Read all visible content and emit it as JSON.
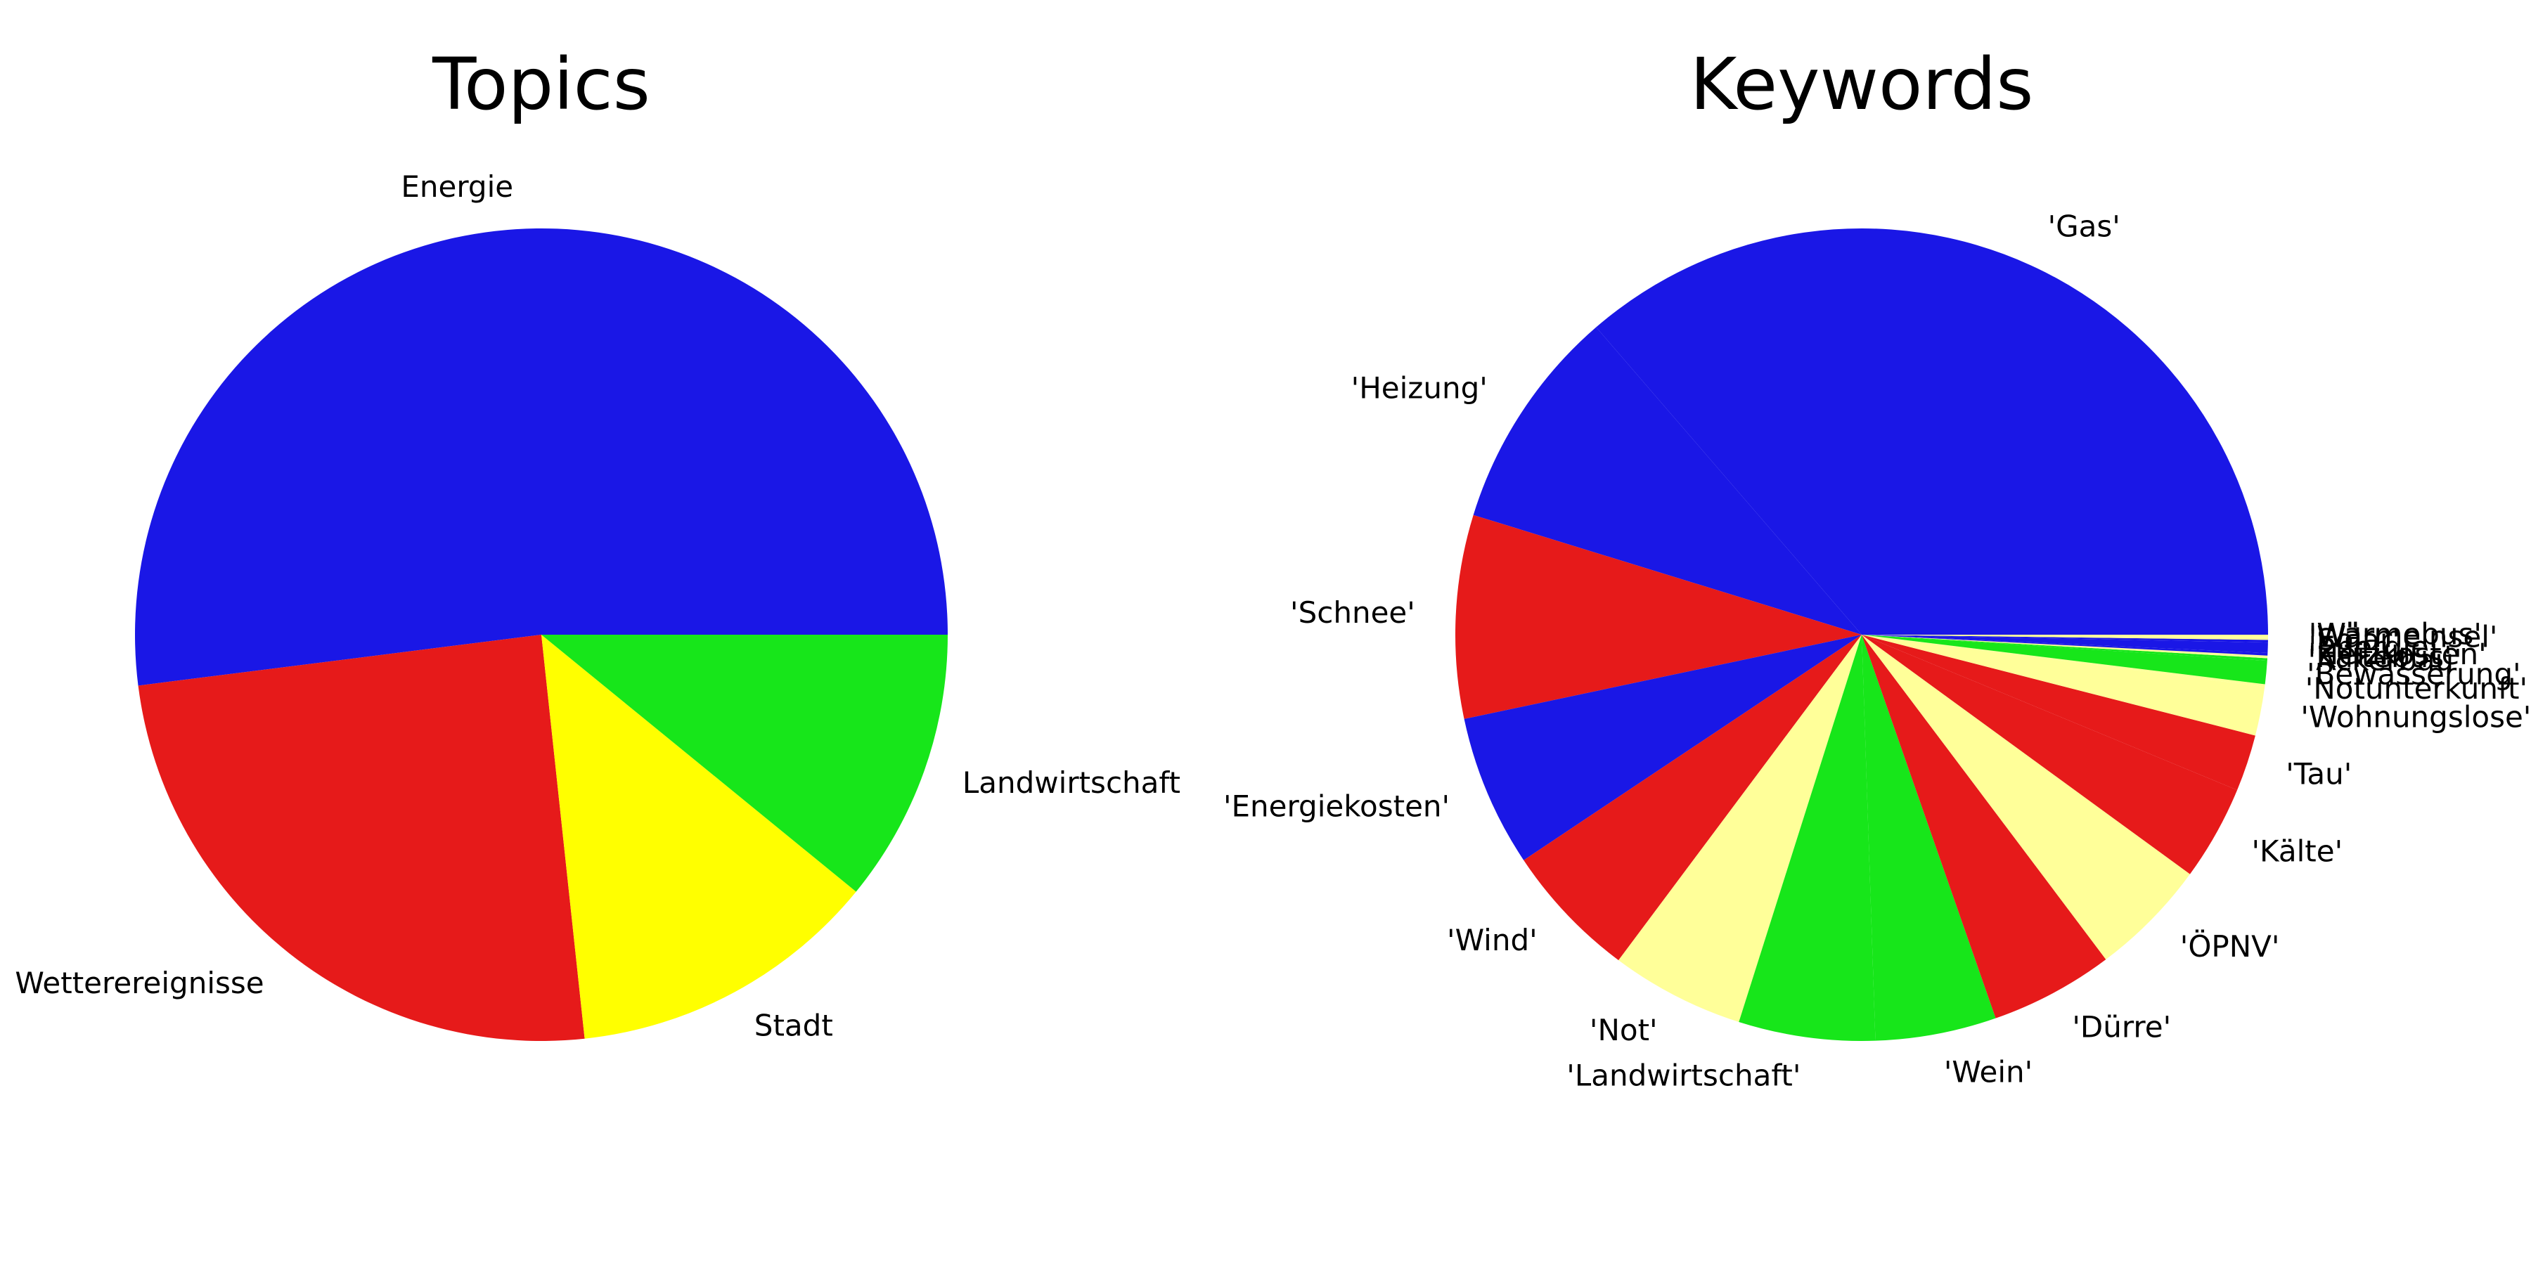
{
  "chart_data": [
    {
      "type": "pie",
      "title": "Topics",
      "start_angle": 0,
      "direction": "counterclockwise",
      "slices": [
        {
          "label": "Energie",
          "value": 52.0,
          "color": "#1a17e6"
        },
        {
          "label": "Wetterereignisse",
          "value": 24.7,
          "color": "#e61a1a"
        },
        {
          "label": "Stadt",
          "value": 12.4,
          "color": "#ffff00"
        },
        {
          "label": "Landwirtschaft",
          "value": 10.9,
          "color": "#17e61a"
        }
      ]
    },
    {
      "type": "pie",
      "title": "Keywords",
      "start_angle": 0,
      "direction": "counterclockwise",
      "slices": [
        {
          "label": "'Gas'",
          "value": 35.5,
          "color": "#1a17e6"
        },
        {
          "label": "'Heizung'",
          "value": 8.7,
          "color": "#1a17e6"
        },
        {
          "label": "'Schnee'",
          "value": 7.9,
          "color": "#e61a1a"
        },
        {
          "label": "'Energiekosten'",
          "value": 5.9,
          "color": "#1a17e6"
        },
        {
          "label": "'Wind'",
          "value": 5.3,
          "color": "#e61a1a"
        },
        {
          "label": "'Not'",
          "value": 5.2,
          "color": "#ffff99"
        },
        {
          "label": "'Landwirtschaft'",
          "value": 5.3,
          "color": "#17e61a"
        },
        {
          "label": "'Wein'",
          "value": 4.7,
          "color": "#17e61a"
        },
        {
          "label": "'Dürre'",
          "value": 4.8,
          "color": "#e61a1a"
        },
        {
          "label": "'ÖPNV'",
          "value": 4.6,
          "color": "#ffff99"
        },
        {
          "label": "'Kälte'",
          "value": 3.7,
          "color": "#e61a1a"
        },
        {
          "label": "'Tau'",
          "value": 2.2,
          "color": "#e61a1a"
        },
        {
          "label": "'Wohnungslose'",
          "value": 1.9,
          "color": "#ffff99"
        },
        {
          "label": "'Notunterkunft'",
          "value": 0.1,
          "color": "#ffff99"
        },
        {
          "label": "'Bewässerung'",
          "value": 0.9,
          "color": "#17e61a"
        },
        {
          "label": "'Ackerbau'",
          "value": 0.1,
          "color": "#17e61a"
        },
        {
          "label": "'Kältebus'",
          "value": 0.1,
          "color": "#ffff99"
        },
        {
          "label": "'Heizkosten'",
          "value": 0.1,
          "color": "#1a17e6"
        },
        {
          "label": "'Energie'",
          "value": 0.4,
          "color": "#1a17e6"
        },
        {
          "label": "'Solar'",
          "value": 0.1,
          "color": "#1a17e6"
        },
        {
          "label": "'Wärmeinsel'",
          "value": 0.1,
          "color": "#ffff99"
        },
        {
          "label": "'Wärmebus'",
          "value": 0.1,
          "color": "#ffff99"
        }
      ]
    }
  ]
}
